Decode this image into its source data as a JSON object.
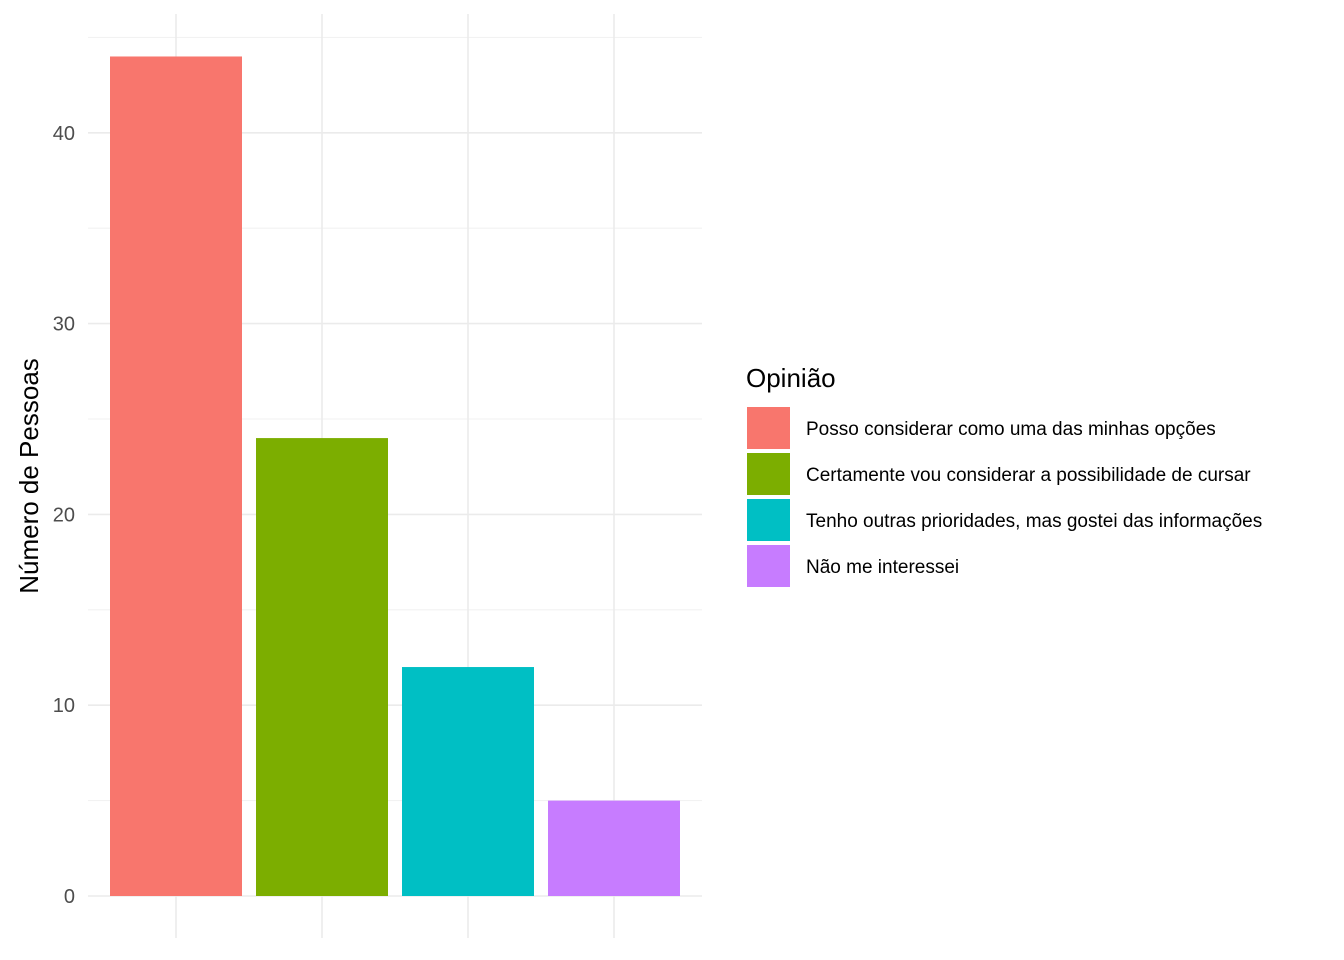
{
  "chart_data": {
    "type": "bar",
    "title": "",
    "xlabel": "",
    "ylabel": "Número de Pessoas",
    "ylim": [
      0,
      45
    ],
    "yticks": [
      0,
      10,
      20,
      30,
      40
    ],
    "grid": true,
    "legend_position": "right",
    "legend_title": "Opinião",
    "categories": [
      "Posso considerar como uma das minhas opções",
      "Certamente vou considerar a possibilidade de cursar",
      "Tenho outras prioridades, mas gostei das informações",
      "Não me interessei"
    ],
    "values": [
      44,
      24,
      12,
      5
    ],
    "colors": [
      "#F8766D",
      "#7CAE00",
      "#00BFC4",
      "#C77CFF"
    ]
  }
}
